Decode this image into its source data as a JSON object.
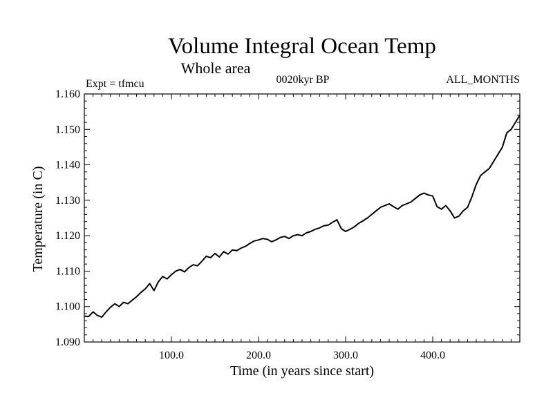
{
  "colors": {
    "line": "#000000",
    "background": "#ffffff"
  },
  "chart_data": {
    "type": "line",
    "title": "Volume Integral Ocean Temp",
    "subtitle": "Whole area",
    "annotations": {
      "left": "Expt = tfmcu",
      "center": "0020kyr BP",
      "right": "ALL_MONTHS"
    },
    "xlabel": "Time (in years since start)",
    "ylabel": "Temperature (in C)",
    "xlim": [
      0,
      500
    ],
    "ylim": [
      1.09,
      1.16
    ],
    "x_ticks": [
      100,
      200,
      300,
      400
    ],
    "x_tick_labels": [
      "100.0",
      "200.0",
      "300.0",
      "400.0"
    ],
    "y_ticks": [
      1.09,
      1.1,
      1.11,
      1.12,
      1.13,
      1.14,
      1.15,
      1.16
    ],
    "y_tick_labels": [
      "1.090",
      "1.100",
      "1.110",
      "1.120",
      "1.130",
      "1.140",
      "1.150",
      "1.160"
    ],
    "grid": false,
    "series": [
      {
        "x": [
          0,
          5,
          10,
          15,
          20,
          25,
          30,
          35,
          40,
          45,
          50,
          55,
          60,
          65,
          70,
          75,
          80,
          85,
          90,
          95,
          100,
          105,
          110,
          115,
          120,
          125,
          130,
          135,
          140,
          145,
          150,
          155,
          160,
          165,
          170,
          175,
          180,
          185,
          190,
          195,
          200,
          205,
          210,
          215,
          220,
          225,
          230,
          235,
          240,
          245,
          250,
          255,
          260,
          265,
          270,
          275,
          280,
          285,
          290,
          295,
          300,
          305,
          310,
          315,
          320,
          325,
          330,
          335,
          340,
          345,
          350,
          355,
          360,
          365,
          370,
          375,
          380,
          385,
          390,
          395,
          400,
          405,
          410,
          415,
          420,
          425,
          430,
          435,
          440,
          445,
          450,
          455,
          460,
          465,
          470,
          475,
          480,
          485,
          490,
          495,
          500
        ],
        "values": [
          1.0973,
          1.0972,
          1.0985,
          1.0975,
          1.097,
          1.0985,
          1.0998,
          1.1008,
          1.1,
          1.1012,
          1.1008,
          1.1018,
          1.1028,
          1.104,
          1.105,
          1.1065,
          1.1045,
          1.107,
          1.1085,
          1.1078,
          1.109,
          1.11,
          1.1105,
          1.1098,
          1.111,
          1.1118,
          1.1115,
          1.1128,
          1.1142,
          1.1138,
          1.115,
          1.114,
          1.1155,
          1.1148,
          1.116,
          1.1158,
          1.1165,
          1.117,
          1.1178,
          1.1185,
          1.1188,
          1.1192,
          1.119,
          1.1183,
          1.1188,
          1.1195,
          1.1198,
          1.1192,
          1.12,
          1.1203,
          1.12,
          1.1208,
          1.1212,
          1.1218,
          1.1222,
          1.1228,
          1.123,
          1.1238,
          1.1245,
          1.122,
          1.1212,
          1.1218,
          1.1225,
          1.1235,
          1.1242,
          1.125,
          1.126,
          1.127,
          1.128,
          1.1285,
          1.129,
          1.1282,
          1.1275,
          1.1285,
          1.129,
          1.1295,
          1.1305,
          1.1315,
          1.132,
          1.1315,
          1.1312,
          1.1282,
          1.1275,
          1.1285,
          1.127,
          1.125,
          1.1255,
          1.127,
          1.128,
          1.131,
          1.1345,
          1.137,
          1.138,
          1.139,
          1.141,
          1.143,
          1.145,
          1.149,
          1.15,
          1.152,
          1.154
        ]
      }
    ]
  }
}
